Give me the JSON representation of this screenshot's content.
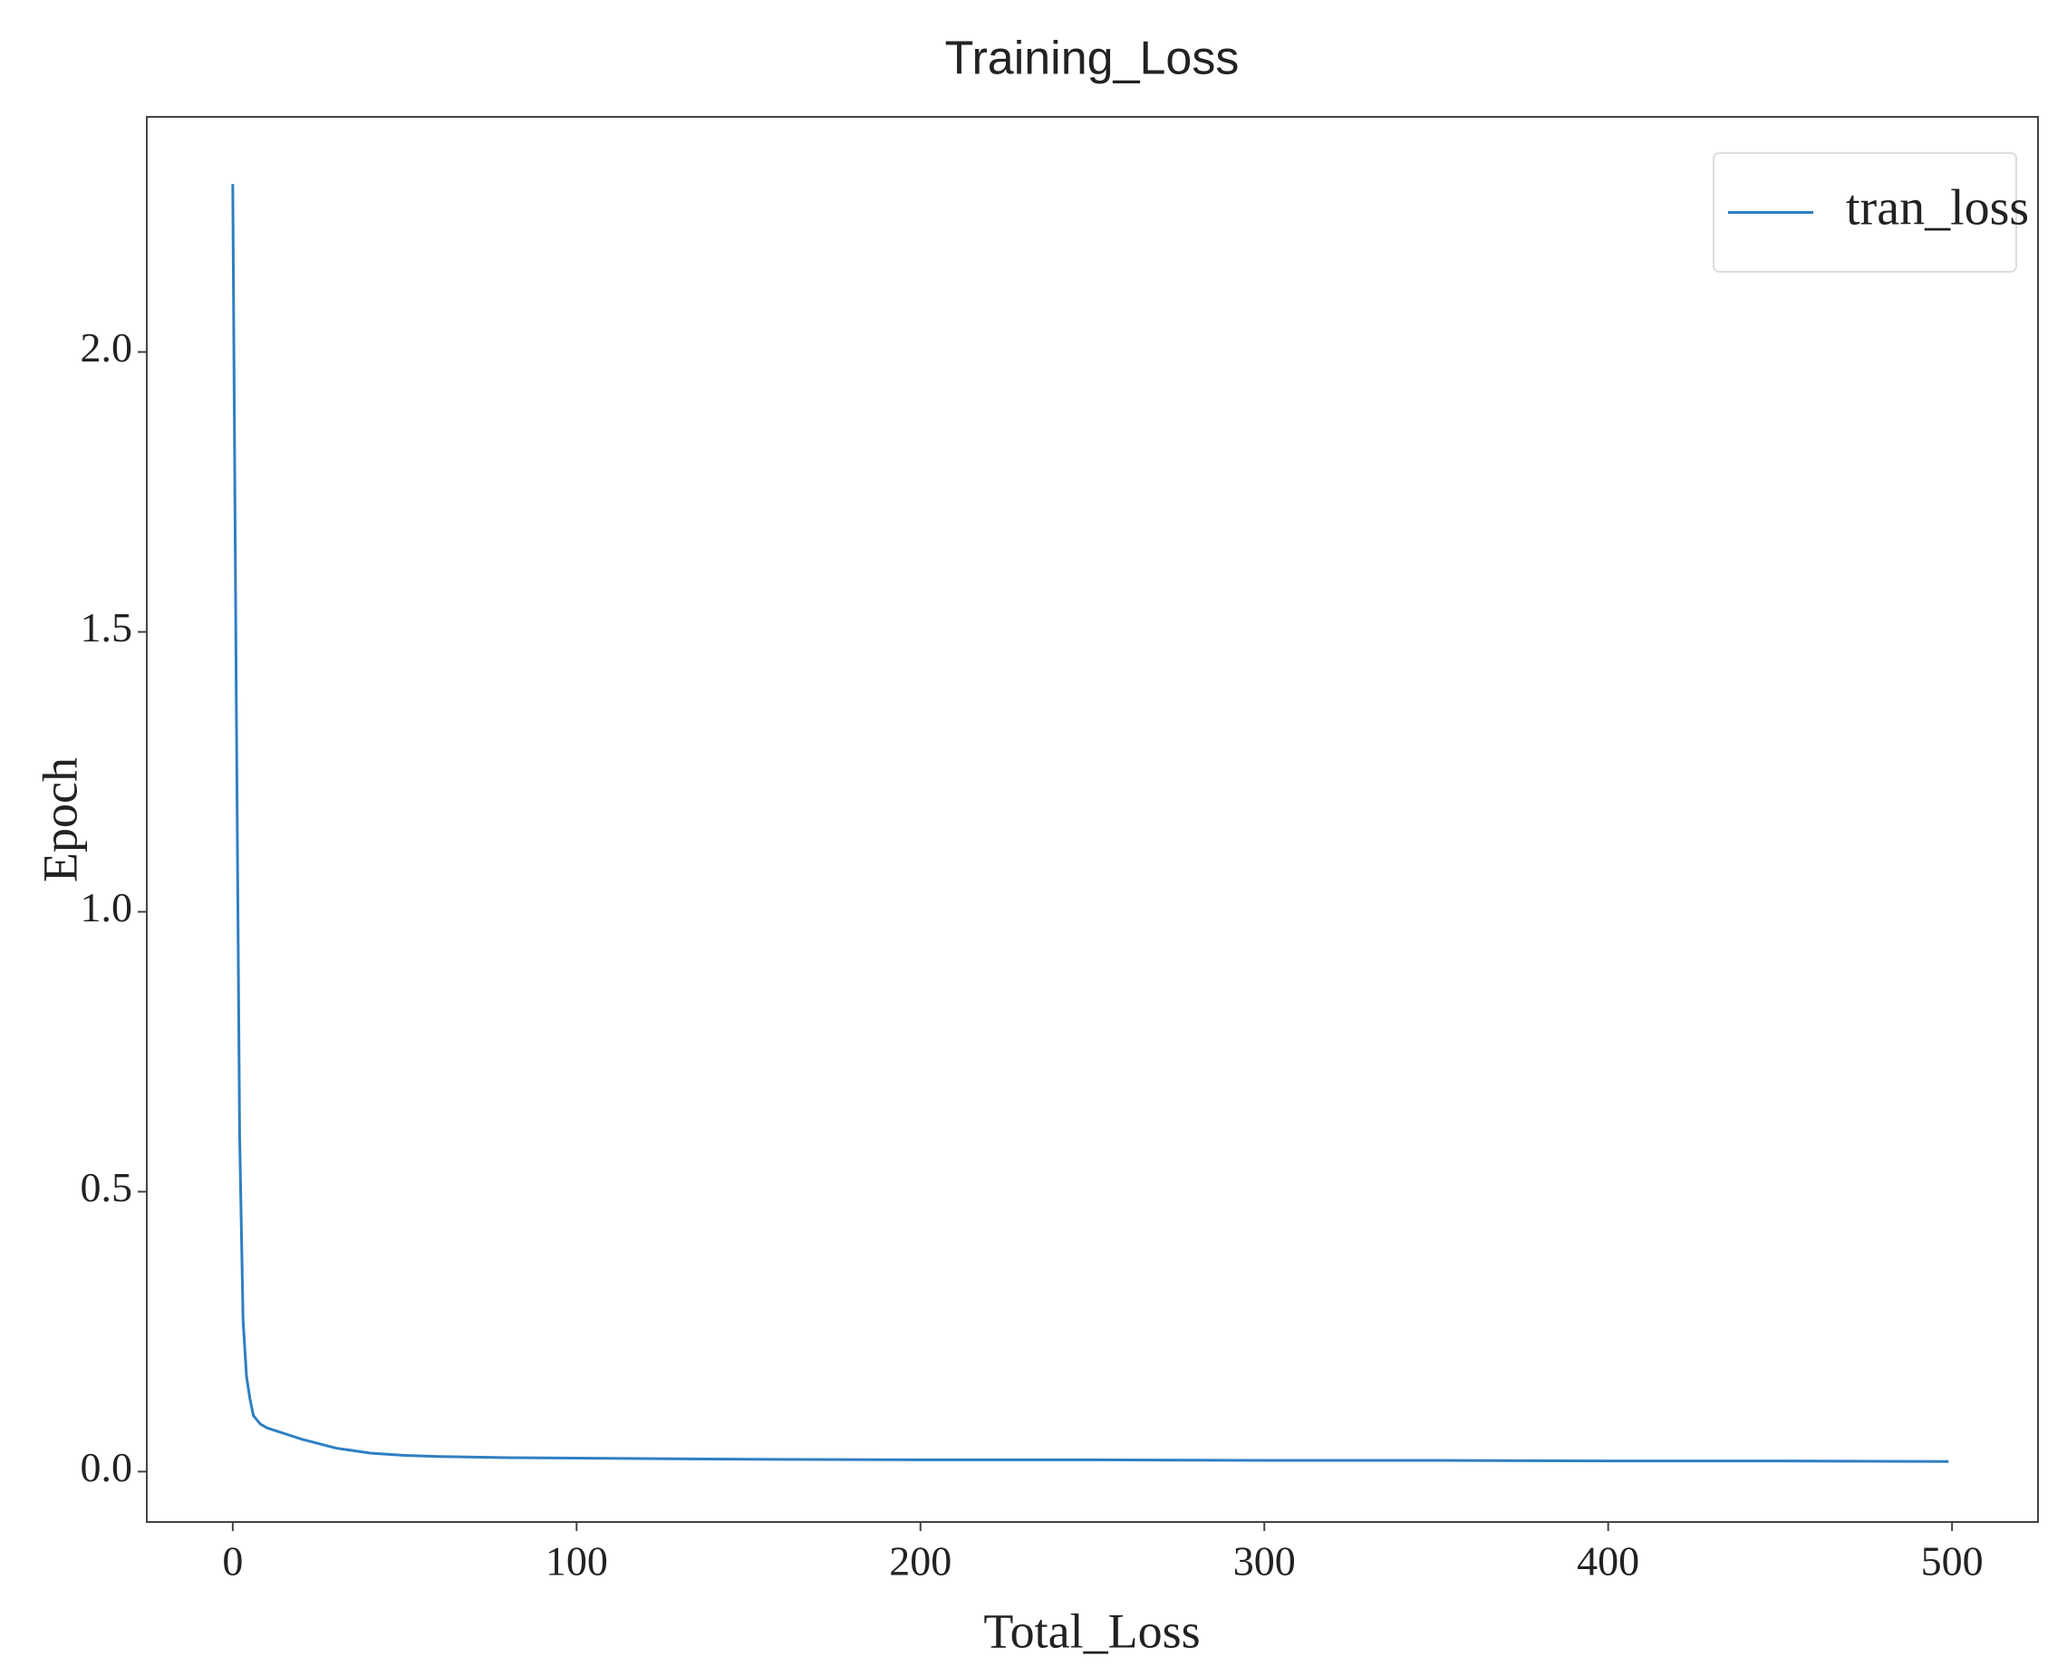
{
  "chart_data": {
    "type": "line",
    "title": "Training_Loss",
    "x_label": "Total_Loss",
    "y_label": "Epoch",
    "x": [
      0,
      1,
      2,
      3,
      4,
      5,
      6,
      8,
      10,
      15,
      20,
      30,
      40,
      50,
      60,
      80,
      100,
      150,
      200,
      250,
      300,
      350,
      400,
      450,
      499
    ],
    "series": [
      {
        "name": "tran_loss",
        "color": "#2f7fc1",
        "values": [
          2.3,
          1.4,
          0.6,
          0.27,
          0.17,
          0.13,
          0.1,
          0.085,
          0.078,
          0.068,
          0.058,
          0.042,
          0.033,
          0.029,
          0.027,
          0.025,
          0.024,
          0.022,
          0.021,
          0.021,
          0.02,
          0.02,
          0.019,
          0.019,
          0.018
        ]
      }
    ],
    "xlim": [
      -25,
      525
    ],
    "xticks": [
      0,
      100,
      200,
      300,
      400,
      500
    ],
    "ylim": [
      -0.09,
      2.42
    ],
    "yticks": [
      {
        "value": 0,
        "label": "0.0"
      },
      0.5,
      {
        "value": 1,
        "label": "1.0"
      },
      1.5,
      {
        "value": 2,
        "label": "2.0"
      }
    ],
    "legend": "upper right",
    "grid": false
  }
}
